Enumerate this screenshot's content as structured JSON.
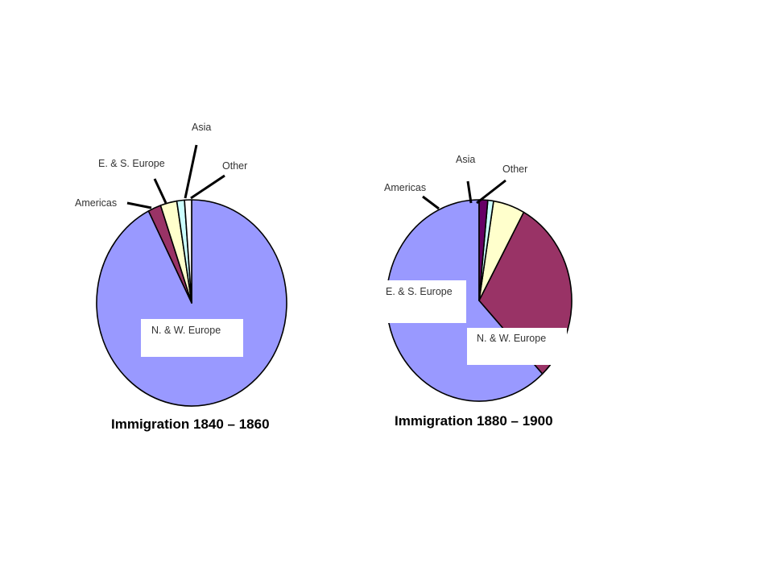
{
  "chart_data": [
    {
      "type": "pie",
      "title": "Immigration 1840 – 1860",
      "slices": [
        {
          "name": "N. & W. Europe",
          "value": 92.5,
          "color": "#9999ff"
        },
        {
          "name": "Americas",
          "value": 2.2,
          "color": "#993366"
        },
        {
          "name": "E. & S. Europe",
          "value": 2.8,
          "color": "#ffffcc"
        },
        {
          "name": "Asia",
          "value": 1.3,
          "color": "#ccffff"
        },
        {
          "name": "Other",
          "value": 1.2,
          "color": "#ffffff"
        }
      ]
    },
    {
      "type": "pie",
      "title": "Immigration 1880 – 1900",
      "slices": [
        {
          "name": "N. & W. Europe",
          "value": 62.0,
          "color": "#9999ff"
        },
        {
          "name": "E. & S. Europe",
          "value": 30.0,
          "color": "#993366"
        },
        {
          "name": "Americas",
          "value": 5.5,
          "color": "#ffffcc"
        },
        {
          "name": "Asia",
          "value": 1.0,
          "color": "#ccffff"
        },
        {
          "name": "Other",
          "value": 1.5,
          "color": "#660066"
        }
      ]
    }
  ]
}
